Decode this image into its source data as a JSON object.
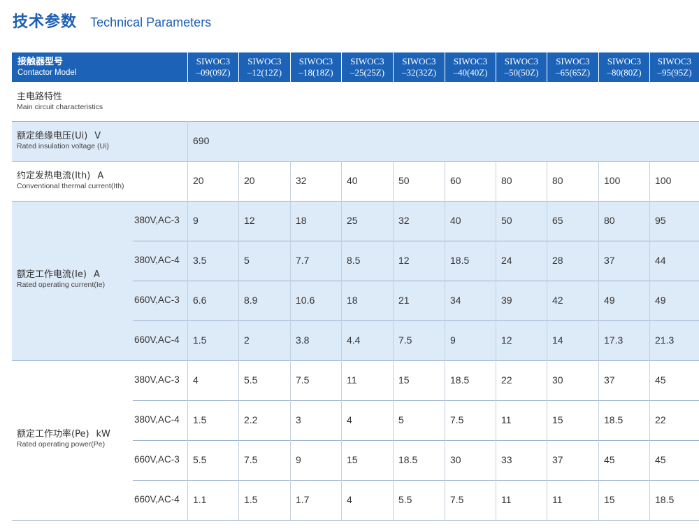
{
  "title": {
    "zh": "技术参数",
    "en": "Technical Parameters"
  },
  "header": {
    "label_zh": "接触器型号",
    "label_en": "Contactor Model",
    "models": [
      [
        "SIWOC3",
        "–09(09Z)"
      ],
      [
        "SIWOC3",
        "–12(12Z)"
      ],
      [
        "SIWOC3",
        "–18(18Z)"
      ],
      [
        "SIWOC3",
        "–25(25Z)"
      ],
      [
        "SIWOC3",
        "–32(32Z)"
      ],
      [
        "SIWOC3",
        "–40(40Z)"
      ],
      [
        "SIWOC3",
        "–50(50Z)"
      ],
      [
        "SIWOC3",
        "–65(65Z)"
      ],
      [
        "SIWOC3",
        "–80(80Z)"
      ],
      [
        "SIWOC3",
        "–95(95Z)"
      ]
    ]
  },
  "section": {
    "zh": "主电路特性",
    "en": "Main circuit characteristics"
  },
  "insulation": {
    "zh": "额定绝缘电压(Ui)",
    "unit": "V",
    "en": "Rated insulation voltage (Ui)",
    "value": "690"
  },
  "thermal": {
    "zh": "约定发热电流(Ith)",
    "unit": "A",
    "en": "Conventional thermal current(Ith)",
    "values": [
      "20",
      "20",
      "32",
      "40",
      "50",
      "60",
      "80",
      "80",
      "100",
      "100"
    ]
  },
  "current": {
    "zh": "额定工作电流(Ie)",
    "unit": "A",
    "en": "Rated operating current(Ie)",
    "rows": [
      {
        "cond": "380V,AC-3",
        "values": [
          "9",
          "12",
          "18",
          "25",
          "32",
          "40",
          "50",
          "65",
          "80",
          "95"
        ]
      },
      {
        "cond": "380V,AC-4",
        "values": [
          "3.5",
          "5",
          "7.7",
          "8.5",
          "12",
          "18.5",
          "24",
          "28",
          "37",
          "44"
        ]
      },
      {
        "cond": "660V,AC-3",
        "values": [
          "6.6",
          "8.9",
          "10.6",
          "18",
          "21",
          "34",
          "39",
          "42",
          "49",
          "49"
        ]
      },
      {
        "cond": "660V,AC-4",
        "values": [
          "1.5",
          "2",
          "3.8",
          "4.4",
          "7.5",
          "9",
          "12",
          "14",
          "17.3",
          "21.3"
        ]
      }
    ]
  },
  "power": {
    "zh": "额定工作功率(Pe)",
    "unit": "kW",
    "en": "Rated operating power(Pe)",
    "rows": [
      {
        "cond": "380V,AC-3",
        "values": [
          "4",
          "5.5",
          "7.5",
          "11",
          "15",
          "18.5",
          "22",
          "30",
          "37",
          "45"
        ]
      },
      {
        "cond": "380V,AC-4",
        "values": [
          "1.5",
          "2.2",
          "3",
          "4",
          "5",
          "7.5",
          "11",
          "15",
          "18.5",
          "22"
        ]
      },
      {
        "cond": "660V,AC-3",
        "values": [
          "5.5",
          "7.5",
          "9",
          "15",
          "18.5",
          "30",
          "33",
          "37",
          "45",
          "45"
        ]
      },
      {
        "cond": "660V,AC-4",
        "values": [
          "1.1",
          "1.5",
          "1.7",
          "4",
          "5.5",
          "7.5",
          "11",
          "11",
          "15",
          "18.5"
        ]
      }
    ]
  }
}
